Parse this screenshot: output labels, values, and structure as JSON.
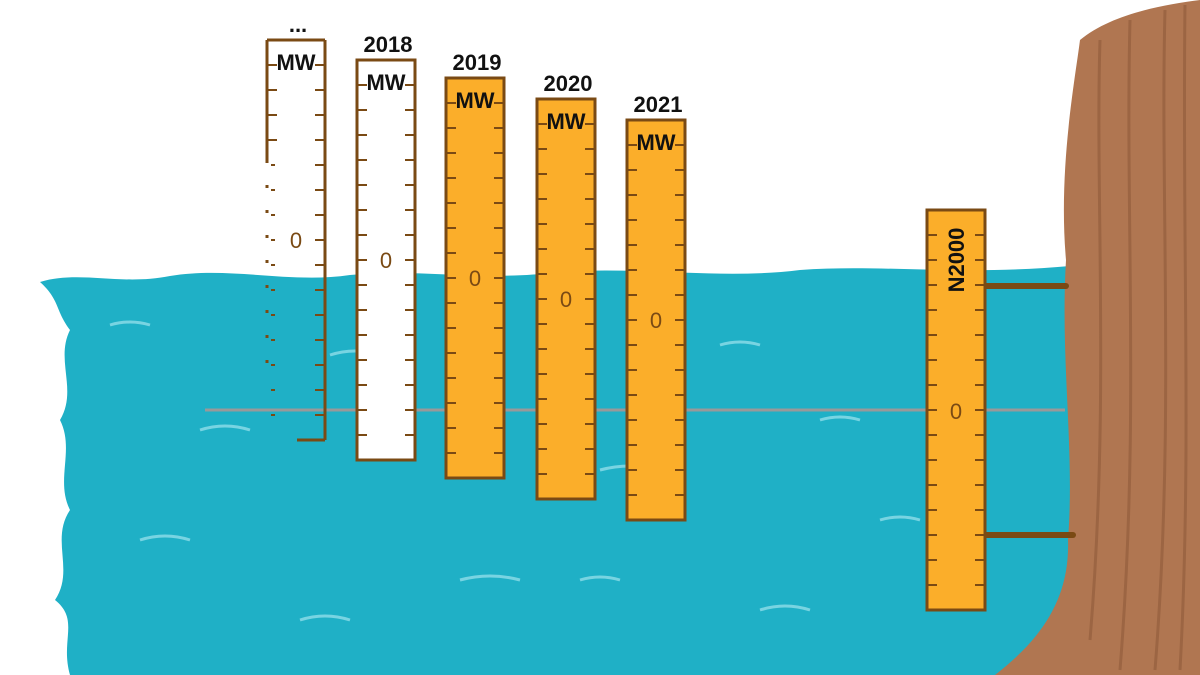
{
  "gauges": [
    {
      "year": "...",
      "unit": "MW",
      "zero": "0"
    },
    {
      "year": "2018",
      "unit": "MW",
      "zero": "0"
    },
    {
      "year": "2019",
      "unit": "MW",
      "zero": "0"
    },
    {
      "year": "2020",
      "unit": "MW",
      "zero": "0"
    },
    {
      "year": "2021",
      "unit": "MW",
      "zero": "0"
    }
  ],
  "reference": {
    "unit": "N2000",
    "zero": "0"
  }
}
